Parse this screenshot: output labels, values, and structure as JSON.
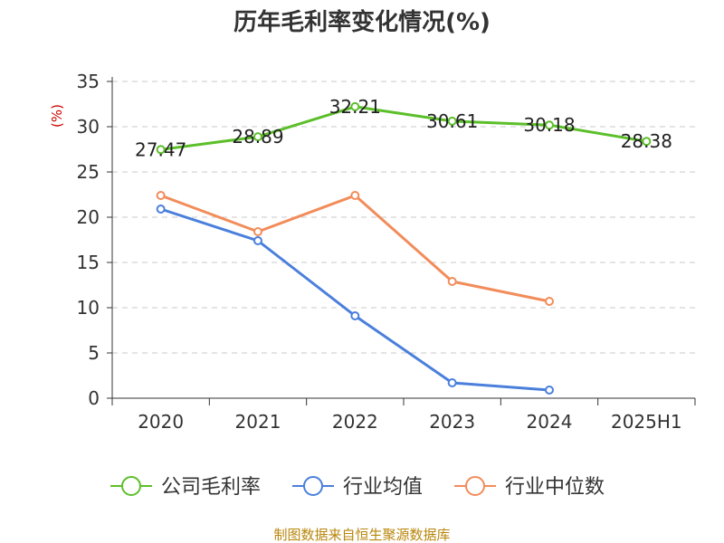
{
  "chart_data": {
    "type": "line",
    "title": "历年毛利率变化情况(%)",
    "ylabel": "(%)",
    "categories": [
      "2020",
      "2021",
      "2022",
      "2023",
      "2024",
      "2025H1"
    ],
    "ylim": [
      0,
      35
    ],
    "yticks": [
      0,
      5,
      10,
      15,
      20,
      25,
      30,
      35
    ],
    "grid": true,
    "legend_position": "bottom",
    "series": [
      {
        "name": "公司毛利率",
        "color": "#5cbf2a",
        "values": [
          27.47,
          28.89,
          32.21,
          30.61,
          30.18,
          28.38
        ],
        "labels": [
          "27.47",
          "28.89",
          "32.21",
          "30.61",
          "30.18",
          "28.38"
        ]
      },
      {
        "name": "行业均值",
        "color": "#4a7fdc",
        "values": [
          20.9,
          17.4,
          9.1,
          1.7,
          0.9,
          null
        ]
      },
      {
        "name": "行业中位数",
        "color": "#f28c5a",
        "values": [
          22.4,
          18.4,
          22.4,
          12.9,
          10.7,
          null
        ]
      }
    ]
  },
  "source_text": "制图数据来自恒生聚源数据库"
}
